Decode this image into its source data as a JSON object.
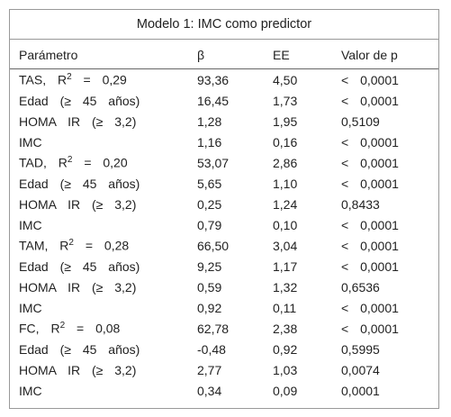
{
  "title": "Modelo 1: IMC como predictor",
  "table": {
    "header": [
      "Parámetro",
      "β",
      "EE",
      "Valor de p"
    ],
    "rows": [
      [
        {
          "pre": "TAS, R",
          "sup": "2",
          "post": "= 0,29"
        },
        "93,36",
        "4,50",
        "< 0,0001"
      ],
      [
        "Edad (≥ 45 años)",
        "16,45",
        "1,73",
        "< 0,0001"
      ],
      [
        "HOMA IR (≥ 3,2)",
        "1,28",
        "1,95",
        "0,5109"
      ],
      [
        "IMC",
        "1,16",
        "0,16",
        "< 0,0001"
      ],
      [
        {
          "pre": "TAD, R",
          "sup": "2",
          "post": "= 0,20"
        },
        "53,07",
        "2,86",
        "< 0,0001"
      ],
      [
        "Edad (≥ 45 años)",
        "5,65",
        "1,10",
        "< 0,0001"
      ],
      [
        "HOMA IR (≥ 3,2)",
        "0,25",
        "1,24",
        "0,8433"
      ],
      [
        "IMC",
        "0,79",
        "0,10",
        "< 0,0001"
      ],
      [
        {
          "pre": "TAM, R",
          "sup": "2",
          "post": "= 0,28"
        },
        "66,50",
        "3,04",
        "< 0,0001"
      ],
      [
        "Edad (≥ 45 años)",
        "9,25",
        "1,17",
        "< 0,0001"
      ],
      [
        "HOMA IR (≥ 3,2)",
        "0,59",
        "1,32",
        "0,6536"
      ],
      [
        "IMC",
        "0,92",
        "0,11",
        "< 0,0001"
      ],
      [
        {
          "pre": "FC, R",
          "sup": "2",
          "post": "= 0,08"
        },
        "62,78",
        "2,38",
        "< 0,0001"
      ],
      [
        "Edad (≥ 45 años)",
        "-0,48",
        "0,92",
        "0,5995"
      ],
      [
        "HOMA IR (≥ 3,2)",
        "2,77",
        "1,03",
        "0,0074"
      ],
      [
        "IMC",
        "0,34",
        "0,09",
        "0,0001"
      ]
    ]
  }
}
